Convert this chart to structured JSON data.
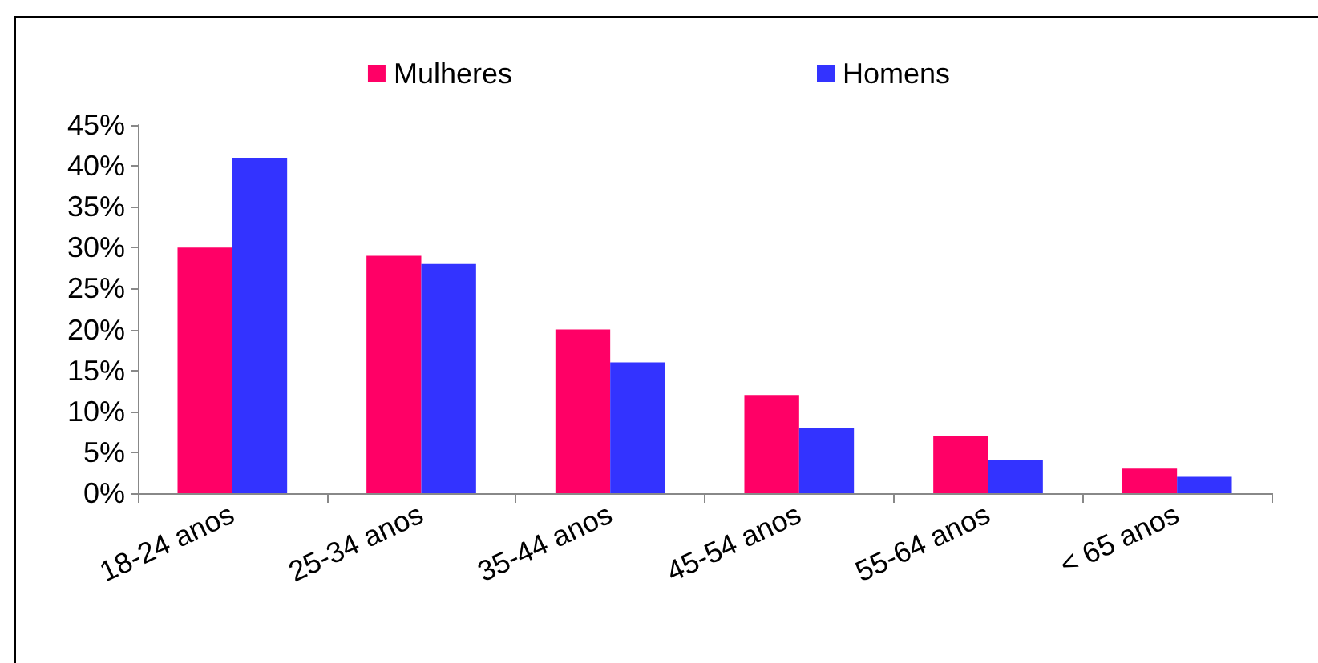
{
  "chart_data": {
    "type": "bar",
    "categories": [
      "18-24 anos",
      "25-34 anos",
      "35-44 anos",
      "45-54 anos",
      "55-64 anos",
      "< 65 anos"
    ],
    "series": [
      {
        "name": "Mulheres",
        "color": "#ff0066",
        "values": [
          30,
          29,
          20,
          12,
          7,
          3
        ]
      },
      {
        "name": "Homens",
        "color": "#3333ff",
        "values": [
          41,
          28,
          16,
          8,
          4,
          2
        ]
      }
    ],
    "ylim": [
      0,
      45
    ],
    "yticks": [
      {
        "value": 0,
        "label": "0%"
      },
      {
        "value": 5,
        "label": "5%"
      },
      {
        "value": 10,
        "label": "10%"
      },
      {
        "value": 15,
        "label": "15%"
      },
      {
        "value": 20,
        "label": "20%"
      },
      {
        "value": 25,
        "label": "25%"
      },
      {
        "value": 30,
        "label": "30%"
      },
      {
        "value": 35,
        "label": "35%"
      },
      {
        "value": 40,
        "label": "40%"
      },
      {
        "value": 45,
        "label": "45%"
      }
    ],
    "grid": false,
    "legend": "top"
  }
}
